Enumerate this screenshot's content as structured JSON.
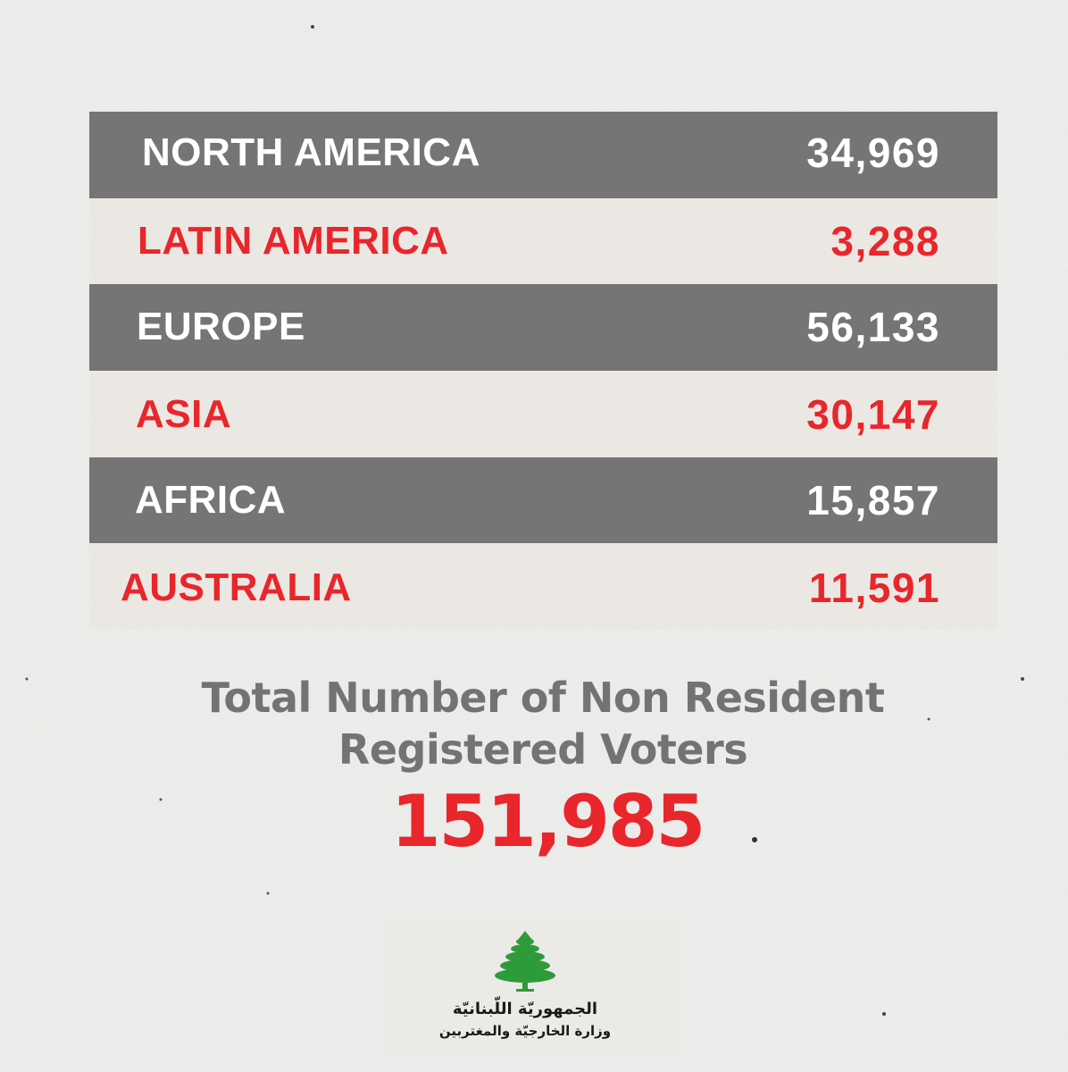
{
  "table": {
    "rows": [
      {
        "region": "NORTH AMERICA",
        "value": "34,969",
        "style": "dark"
      },
      {
        "region": "LATIN AMERICA",
        "value": "3,288",
        "style": "light"
      },
      {
        "region": "EUROPE",
        "value": "56,133",
        "style": "dark"
      },
      {
        "region": "ASIA",
        "value": "30,147",
        "style": "light"
      },
      {
        "region": "AFRICA",
        "value": "15,857",
        "style": "dark"
      },
      {
        "region": "AUSTRALIA",
        "value": "11,591",
        "style": "light"
      }
    ]
  },
  "total": {
    "title_line1": "Total Number of Non Resident",
    "title_line2": "Registered Voters",
    "value": "151,985"
  },
  "logo": {
    "icon": "cedar-tree-icon",
    "line1": "الجمهوريّة اللّبنانيّة",
    "line2": "وزارة الخارجيّة والمغتربين"
  },
  "colors": {
    "accent_red": "#e8262b",
    "dark_row": "#757575",
    "light_row": "#ebe8e3",
    "title_gray": "#737373"
  }
}
